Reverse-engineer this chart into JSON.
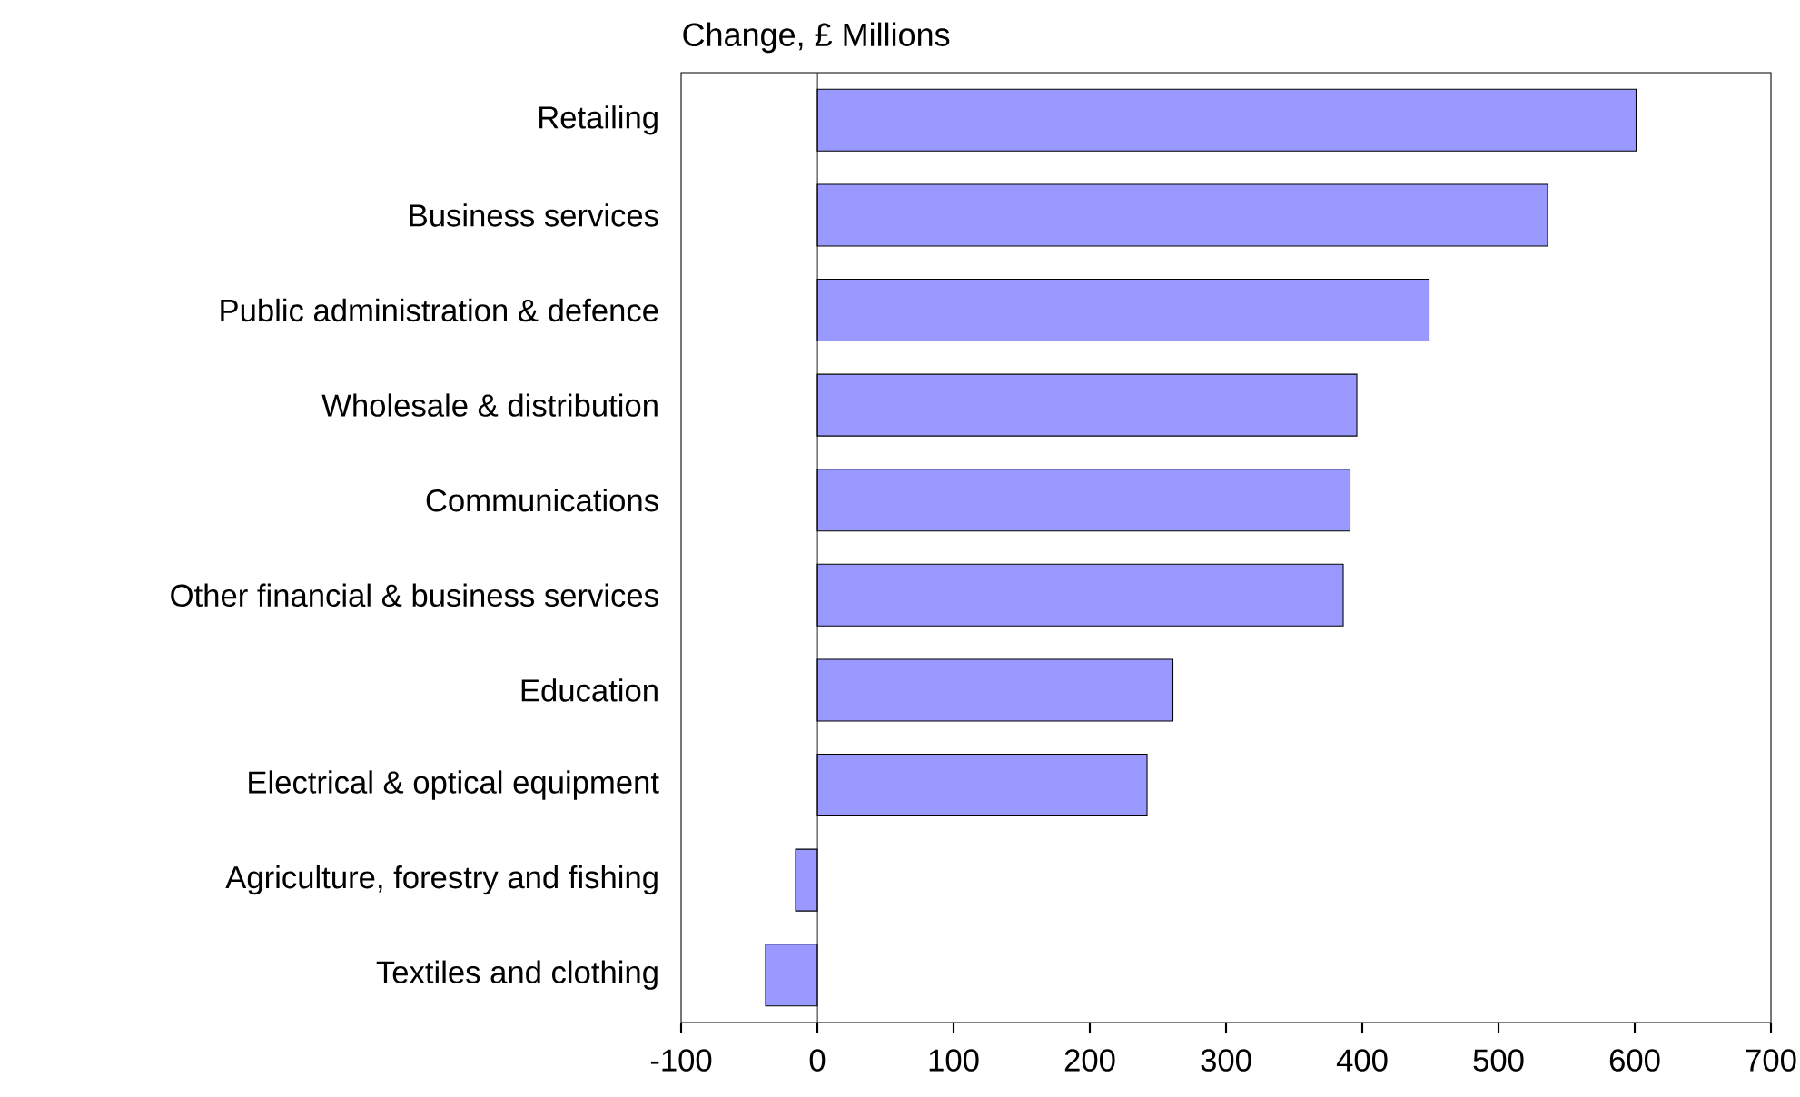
{
  "chart_data": {
    "type": "bar",
    "orientation": "horizontal",
    "title": "Change, £ Millions",
    "categories": [
      "Retailing",
      "Business services",
      "Public administration & defence",
      "Wholesale & distribution",
      "Communications",
      "Other financial & business services",
      "Education",
      "Electrical & optical equipment",
      "Agriculture, forestry and fishing",
      "Textiles and clothing"
    ],
    "values": [
      601,
      536,
      449,
      396,
      391,
      386,
      261,
      242,
      -16,
      -38
    ],
    "color": "#9999ff",
    "xlim": [
      -100,
      700
    ],
    "xticks": [
      -100,
      0,
      100,
      200,
      300,
      400,
      500,
      600,
      700
    ]
  }
}
